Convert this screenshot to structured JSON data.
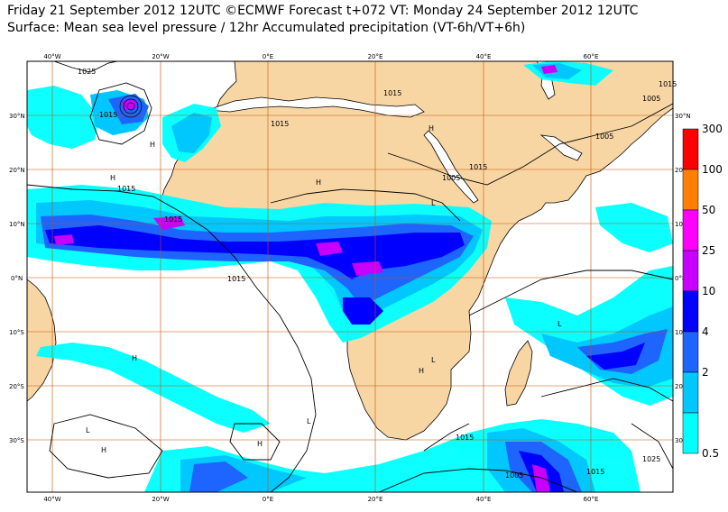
{
  "header": {
    "line1": "Friday 21 September 2012 12UTC ©ECMWF Forecast t+072 VT: Monday 24 September 2012 12UTC",
    "line2": "Surface: Mean sea level pressure / 12hr Accumulated precipitation (VT-6h/VT+6h)"
  },
  "axes": {
    "lon_top": [
      "40°W",
      "20°W",
      "0°E",
      "20°E",
      "40°E",
      "60°E"
    ],
    "lon_bottom": [
      "40°W",
      "20°W",
      "0°E",
      "20°E",
      "40°E",
      "60°E"
    ],
    "lat_left": [
      "30°N",
      "20°N",
      "10°N",
      "0°N",
      "10°S",
      "20°S",
      "30°S"
    ],
    "lat_right": [
      "30°N",
      "20°N",
      "10°N",
      "0°N",
      "10°S",
      "20°S",
      "30"
    ]
  },
  "isobar_labels": [
    "1025",
    "1015",
    "1015",
    "1015",
    "1015",
    "1015",
    "1005",
    "1005",
    "1005",
    "1015",
    "1015",
    "1005",
    "1015",
    "1015",
    "1025",
    "1015"
  ],
  "pressure_centres": [
    "H",
    "H",
    "H",
    "H",
    "L",
    "H",
    "L",
    "H",
    "L",
    "L",
    "L",
    "H",
    "H"
  ],
  "legend": {
    "labels": [
      "300",
      "100",
      "50",
      "25",
      "10",
      "4",
      "2",
      "0.5"
    ],
    "colors": [
      "#ff0000",
      "#ff8000",
      "#ff00ff",
      "#c800ff",
      "#0000ff",
      "#1e64ff",
      "#00c8ff",
      "#00ffff"
    ]
  },
  "colors": {
    "land": "#f8d6a4",
    "ocean": "#ffffff",
    "grid": "#c85000",
    "precip_light": "#00ffff",
    "precip_mid": "#00c8ff",
    "precip_heavy": "#1e64ff",
    "precip_very_heavy": "#0000ff",
    "precip_extreme": "#c800ff"
  }
}
